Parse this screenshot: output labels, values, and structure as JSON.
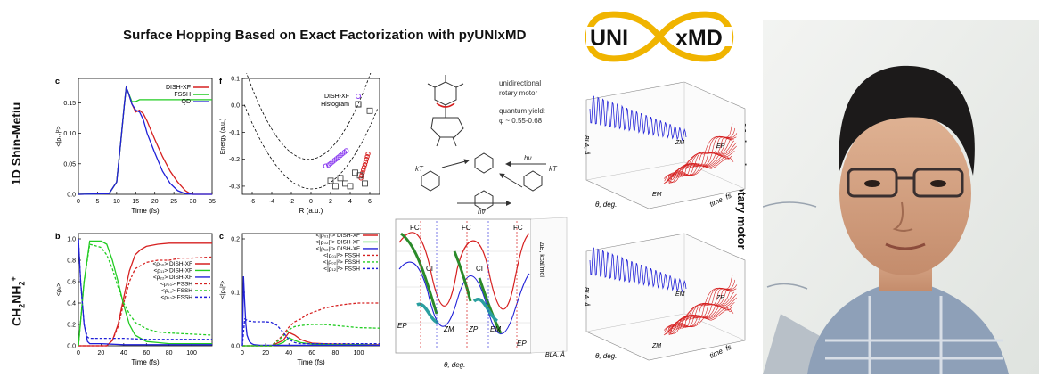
{
  "header": {
    "title": "Surface Hopping Based on Exact Factorization with pyUNIxMD",
    "logo_left": "UNI",
    "logo_right": "xMD"
  },
  "rows": {
    "top_label": "1D Shin-Metiu",
    "bottom_label_parts": [
      "CH",
      "2",
      "NH",
      "2",
      "+"
    ],
    "right_label": "Molecular rotary motor"
  },
  "colors": {
    "red": "#d62020",
    "green": "#22cc22",
    "blue": "#2020d8",
    "purple": "#8a3cf0",
    "logo_gold": "#f0b400"
  },
  "panels": {
    "c_top": {
      "letter": "c",
      "xlabel": "Time (fs)",
      "ylabel": "<|ρ₁₂|²>",
      "xticks": [
        "0",
        "5",
        "10",
        "15",
        "20",
        "25",
        "30",
        "35"
      ],
      "yticks": [
        "0.0",
        "0.05",
        "0.10",
        "0.15"
      ],
      "left_tick": "5",
      "legend": [
        "DISH-XF",
        "FSSH",
        "QD"
      ]
    },
    "f": {
      "letter": "f",
      "xlabel": "R (a.u.)",
      "ylabel": "Energy (a.u.)",
      "xticks": [
        "-6",
        "-4",
        "-2",
        "0",
        "2",
        "4",
        "6"
      ],
      "yticks": [
        "0.1",
        "0.0",
        "-0.1",
        "-0.2",
        "-0.3"
      ],
      "legend": [
        "DISH-XF",
        "Histogram"
      ]
    },
    "b": {
      "letter": "b",
      "xlabel": "Time (fs)",
      "ylabel": "<ρᵢᵢ>",
      "xticks": [
        "0",
        "20",
        "40",
        "60",
        "80",
        "100"
      ],
      "yticks": [
        "0.0",
        "0.2",
        "0.4",
        "0.6",
        "0.8",
        "1.0"
      ],
      "legend": [
        "<ρ₀₀> DISH-XF",
        "<ρ₁₁> DISH-XF",
        "<ρ₂₂> DISH-XF",
        "<ρ₀₀> FSSH",
        "<ρ₁₁> FSSH",
        "<ρ₂₂> FSSH"
      ]
    },
    "c_bottom": {
      "letter": "c",
      "xlabel": "Time (fs)",
      "ylabel": "<|ρᵢⱼ|²>",
      "xticks": [
        "0",
        "20",
        "40",
        "60",
        "80",
        "100"
      ],
      "yticks": [
        "0.0",
        "0.1",
        "0.2"
      ],
      "legend": [
        "<|ρ₀₁|²> DISH-XF",
        "<|ρ₀₂|²> DISH-XF",
        "<|ρ₁₂|²> DISH-XF",
        "<|ρ₀₁|²> FSSH",
        "<|ρ₀₂|²> FSSH",
        "<|ρ₁₂|²> FSSH"
      ]
    }
  },
  "motor": {
    "caption_lines": [
      "unidirectional",
      "rotary motor",
      "quantum yield:",
      "φ ~ 0.55-0.68"
    ],
    "kT": "kT",
    "hv": "hν",
    "curve_labels": [
      "FC",
      "FC",
      "FC",
      "CI",
      "CI",
      "EP",
      "ZM",
      "ZP",
      "EM",
      "EP"
    ],
    "left_axis": "ΔE, kcal/mol",
    "bottom_axis": "θ, deg.",
    "right_axis": "BLA, Å",
    "plot3d_top": {
      "axis_y": "BLA, Å",
      "axis_x": "θ, deg.",
      "axis_z": "time, fs",
      "labels": [
        "ZM",
        "EP",
        "EM"
      ]
    },
    "plot3d_bottom": {
      "axis_y": "BLA, Å",
      "axis_x": "θ, deg.",
      "axis_z": "time, fs",
      "labels": [
        "EM",
        "ZP",
        "ZM"
      ]
    }
  },
  "chart_data": [
    {
      "type": "line",
      "title": "",
      "xlabel": "Time (fs)",
      "ylabel": "<|ρ12|²>",
      "xlim": [
        0,
        35
      ],
      "ylim": [
        0,
        0.19
      ],
      "series": [
        {
          "name": "DISH-XF",
          "x": [
            0,
            8,
            10,
            11,
            12,
            12.5,
            13,
            14,
            15,
            16,
            17,
            18,
            19,
            20,
            22,
            24,
            26,
            28,
            29,
            30,
            35
          ],
          "y": [
            0,
            0.001,
            0.02,
            0.08,
            0.145,
            0.175,
            0.168,
            0.148,
            0.135,
            0.138,
            0.132,
            0.12,
            0.105,
            0.09,
            0.062,
            0.038,
            0.02,
            0.006,
            0.002,
            0,
            0
          ]
        },
        {
          "name": "FSSH",
          "x": [
            0,
            8,
            10,
            11,
            12,
            12.5,
            13,
            14,
            15,
            16,
            17,
            20,
            25,
            30,
            35
          ],
          "y": [
            0,
            0.001,
            0.02,
            0.08,
            0.145,
            0.175,
            0.168,
            0.152,
            0.152,
            0.155,
            0.155,
            0.155,
            0.155,
            0.155,
            0.155
          ]
        },
        {
          "name": "QD",
          "x": [
            0,
            8,
            10,
            11,
            12,
            12.5,
            13,
            14,
            15,
            16,
            17,
            18,
            20,
            22,
            24,
            26,
            28,
            30,
            35
          ],
          "y": [
            0,
            0.001,
            0.02,
            0.08,
            0.145,
            0.175,
            0.168,
            0.148,
            0.138,
            0.135,
            0.122,
            0.1,
            0.068,
            0.038,
            0.018,
            0.006,
            0.001,
            0,
            0
          ]
        }
      ]
    },
    {
      "type": "scatter",
      "title": "",
      "xlabel": "R (a.u.)",
      "ylabel": "Energy (a.u.)",
      "xlim": [
        -7,
        7
      ],
      "ylim": [
        -0.33,
        0.1
      ],
      "series": [
        {
          "name": "DISH-XF",
          "x": [
            1.5,
            1.8,
            2.0,
            2.2,
            2.4,
            2.6,
            2.8,
            3.0,
            3.2,
            3.4,
            3.6
          ],
          "y": [
            -0.225,
            -0.221,
            -0.216,
            -0.21,
            -0.204,
            -0.198,
            -0.192,
            -0.186,
            -0.18,
            -0.174,
            -0.168
          ]
        },
        {
          "name": "Histogram",
          "x": [
            2,
            2.5,
            3,
            3.5,
            4,
            4.5,
            5,
            5.5,
            6
          ],
          "y": [
            -0.28,
            -0.3,
            -0.27,
            -0.29,
            -0.3,
            -0.25,
            -0.26,
            -0.29,
            -0.02
          ]
        }
      ]
    },
    {
      "type": "line",
      "title": "",
      "xlabel": "Time (fs)",
      "ylabel": "<ρii>",
      "xlim": [
        0,
        118
      ],
      "ylim": [
        0,
        1.05
      ],
      "series": [
        {
          "name": "<ρ00> DISH-XF",
          "x": [
            0,
            25,
            30,
            35,
            40,
            45,
            50,
            55,
            60,
            70,
            80,
            90,
            100,
            118
          ],
          "y": [
            0,
            0,
            0.05,
            0.2,
            0.45,
            0.7,
            0.85,
            0.9,
            0.93,
            0.95,
            0.96,
            0.96,
            0.96,
            0.96
          ]
        },
        {
          "name": "<ρ11> DISH-XF",
          "x": [
            0,
            5,
            10,
            20,
            25,
            30,
            35,
            40,
            45,
            50,
            60,
            70,
            80,
            100,
            118
          ],
          "y": [
            0,
            0.6,
            0.98,
            0.98,
            0.95,
            0.8,
            0.6,
            0.38,
            0.2,
            0.1,
            0.04,
            0.03,
            0.02,
            0.02,
            0.02
          ]
        },
        {
          "name": "<ρ22> DISH-XF",
          "x": [
            0,
            2,
            5,
            8,
            10,
            20,
            40,
            60,
            80,
            100,
            118
          ],
          "y": [
            1,
            0.6,
            0.2,
            0.04,
            0.02,
            0.02,
            0.01,
            0.01,
            0.01,
            0.01,
            0.01
          ]
        },
        {
          "name": "<ρ00> FSSH",
          "x": [
            0,
            25,
            30,
            35,
            40,
            45,
            50,
            60,
            70,
            80,
            90,
            100,
            118
          ],
          "y": [
            0,
            0,
            0.05,
            0.18,
            0.4,
            0.6,
            0.72,
            0.78,
            0.8,
            0.8,
            0.82,
            0.82,
            0.83
          ]
        },
        {
          "name": "<ρ11> FSSH",
          "x": [
            0,
            5,
            10,
            20,
            25,
            30,
            35,
            40,
            45,
            50,
            60,
            70,
            80,
            100,
            118
          ],
          "y": [
            0,
            0.6,
            0.95,
            0.92,
            0.85,
            0.72,
            0.55,
            0.4,
            0.3,
            0.22,
            0.16,
            0.13,
            0.12,
            0.11,
            0.1
          ]
        },
        {
          "name": "<ρ22> FSSH",
          "x": [
            0,
            2,
            5,
            8,
            10,
            20,
            40,
            60,
            80,
            100,
            118
          ],
          "y": [
            1,
            0.6,
            0.2,
            0.08,
            0.07,
            0.07,
            0.07,
            0.06,
            0.06,
            0.06,
            0.06
          ]
        }
      ]
    },
    {
      "type": "line",
      "title": "",
      "xlabel": "Time (fs)",
      "ylabel": "<|ρij|²>",
      "xlim": [
        0,
        118
      ],
      "ylim": [
        0,
        0.21
      ],
      "series": [
        {
          "name": "<|ρ01|²> DISH-XF",
          "x": [
            0,
            25,
            30,
            35,
            40,
            45,
            50,
            55,
            60,
            70,
            80,
            90,
            100,
            118
          ],
          "y": [
            0,
            0,
            0.005,
            0.01,
            0.025,
            0.02,
            0.012,
            0.008,
            0.005,
            0.004,
            0.003,
            0.003,
            0.002,
            0.002
          ]
        },
        {
          "name": "<|ρ02|²> DISH-XF",
          "x": [
            0,
            25,
            30,
            35,
            40,
            45,
            50,
            60,
            80,
            100,
            118
          ],
          "y": [
            0,
            0,
            0.002,
            0.006,
            0.015,
            0.01,
            0.006,
            0.003,
            0.002,
            0.002,
            0.001
          ]
        },
        {
          "name": "<|ρ12|²> DISH-XF",
          "x": [
            0,
            1,
            2,
            3,
            4,
            6,
            8,
            10,
            15,
            20,
            25,
            118
          ],
          "y": [
            0,
            0.13,
            0.08,
            0.04,
            0.02,
            0.008,
            0.004,
            0.002,
            0.001,
            0.001,
            0.001,
            0.001
          ]
        },
        {
          "name": "<|ρ01|²> FSSH",
          "x": [
            0,
            25,
            30,
            35,
            40,
            45,
            50,
            55,
            60,
            70,
            80,
            90,
            100,
            118
          ],
          "y": [
            0,
            0,
            0.01,
            0.02,
            0.035,
            0.045,
            0.05,
            0.058,
            0.062,
            0.07,
            0.075,
            0.078,
            0.08,
            0.08
          ]
        },
        {
          "name": "<|ρ02|²> FSSH",
          "x": [
            0,
            25,
            30,
            35,
            40,
            45,
            50,
            60,
            70,
            80,
            90,
            100,
            118
          ],
          "y": [
            0,
            0,
            0.008,
            0.018,
            0.03,
            0.036,
            0.038,
            0.04,
            0.04,
            0.038,
            0.036,
            0.034,
            0.033
          ]
        },
        {
          "name": "<|ρ12|²> FSSH",
          "x": [
            0,
            2,
            4,
            6,
            8,
            10,
            15,
            20,
            25,
            30,
            35,
            40,
            45,
            50,
            118
          ],
          "y": [
            0,
            0.05,
            0.048,
            0.046,
            0.046,
            0.045,
            0.045,
            0.045,
            0.044,
            0.038,
            0.025,
            0.012,
            0.006,
            0.004,
            0.004
          ]
        }
      ]
    }
  ]
}
